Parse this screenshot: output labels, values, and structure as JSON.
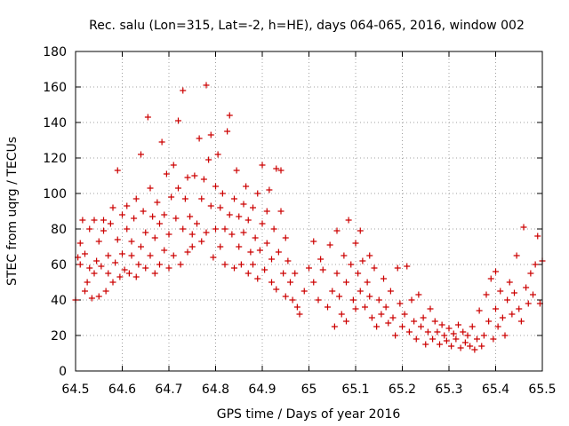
{
  "chart_data": {
    "type": "scatter",
    "title": "Rec. salu (Lon=315, Lat=-2, h=HE), days 064-065, 2016, window 002",
    "xlabel": "GPS time / Days of year 2016",
    "ylabel": "STEC from uqrg / TECUs",
    "xlim": [
      64.5,
      65.5
    ],
    "ylim": [
      0,
      180
    ],
    "xticks": [
      64.5,
      64.6,
      64.7,
      64.8,
      64.9,
      65,
      65.1,
      65.2,
      65.3,
      65.4,
      65.5
    ],
    "xtick_labels": [
      "64.5",
      "64.6",
      "64.7",
      "64.8",
      "64.9",
      "65",
      "65.1",
      "65.2",
      "65.3",
      "65.4",
      "65.5"
    ],
    "yticks": [
      0,
      20,
      40,
      60,
      80,
      100,
      120,
      140,
      160,
      180
    ],
    "ytick_labels": [
      "0",
      "20",
      "40",
      "60",
      "80",
      "100",
      "120",
      "140",
      "160",
      "180"
    ],
    "grid": true,
    "marker": "plus",
    "color": "#cc0000",
    "series": [
      {
        "points": [
          [
            64.5,
            40
          ],
          [
            64.505,
            64
          ],
          [
            64.51,
            60
          ],
          [
            64.51,
            72
          ],
          [
            64.515,
            85
          ],
          [
            64.52,
            45
          ],
          [
            64.52,
            66
          ],
          [
            64.525,
            50
          ],
          [
            64.53,
            58
          ],
          [
            64.53,
            80
          ],
          [
            64.535,
            41
          ],
          [
            64.54,
            55
          ],
          [
            64.54,
            85
          ],
          [
            64.545,
            62
          ],
          [
            64.55,
            42
          ],
          [
            64.55,
            73
          ],
          [
            64.555,
            59
          ],
          [
            64.56,
            79
          ],
          [
            64.56,
            85
          ],
          [
            64.565,
            45
          ],
          [
            64.57,
            55
          ],
          [
            64.57,
            65
          ],
          [
            64.575,
            83
          ],
          [
            64.58,
            92
          ],
          [
            64.58,
            50
          ],
          [
            64.585,
            61
          ],
          [
            64.59,
            113
          ],
          [
            64.59,
            74
          ],
          [
            64.595,
            53
          ],
          [
            64.6,
            66
          ],
          [
            64.6,
            88
          ],
          [
            64.605,
            57
          ],
          [
            64.61,
            80
          ],
          [
            64.61,
            93
          ],
          [
            64.615,
            55
          ],
          [
            64.62,
            65
          ],
          [
            64.62,
            73
          ],
          [
            64.625,
            86
          ],
          [
            64.63,
            97
          ],
          [
            64.63,
            53
          ],
          [
            64.635,
            60
          ],
          [
            64.64,
            122
          ],
          [
            64.64,
            70
          ],
          [
            64.645,
            90
          ],
          [
            64.65,
            58
          ],
          [
            64.65,
            78
          ],
          [
            64.655,
            143
          ],
          [
            64.66,
            103
          ],
          [
            64.66,
            65
          ],
          [
            64.665,
            87
          ],
          [
            64.67,
            55
          ],
          [
            64.67,
            75
          ],
          [
            64.675,
            95
          ],
          [
            64.68,
            60
          ],
          [
            64.68,
            83
          ],
          [
            64.685,
            129
          ],
          [
            64.69,
            68
          ],
          [
            64.69,
            88
          ],
          [
            64.695,
            111
          ],
          [
            64.7,
            58
          ],
          [
            64.7,
            77
          ],
          [
            64.705,
            98
          ],
          [
            64.71,
            116
          ],
          [
            64.71,
            65
          ],
          [
            64.715,
            86
          ],
          [
            64.72,
            103
          ],
          [
            64.72,
            141
          ],
          [
            64.725,
            60
          ],
          [
            64.73,
            80
          ],
          [
            64.73,
            158
          ],
          [
            64.735,
            97
          ],
          [
            64.74,
            67
          ],
          [
            64.74,
            109
          ],
          [
            64.745,
            87
          ],
          [
            64.75,
            70
          ],
          [
            64.75,
            77
          ],
          [
            64.755,
            110
          ],
          [
            64.76,
            83
          ],
          [
            64.765,
            131
          ],
          [
            64.77,
            73
          ],
          [
            64.77,
            97
          ],
          [
            64.775,
            108
          ],
          [
            64.78,
            161
          ],
          [
            64.78,
            78
          ],
          [
            64.785,
            119
          ],
          [
            64.79,
            93
          ],
          [
            64.79,
            133
          ],
          [
            64.795,
            64
          ],
          [
            64.8,
            80
          ],
          [
            64.8,
            104
          ],
          [
            64.805,
            122
          ],
          [
            64.81,
            70
          ],
          [
            64.81,
            92
          ],
          [
            64.815,
            100
          ],
          [
            64.82,
            60
          ],
          [
            64.82,
            80
          ],
          [
            64.825,
            135
          ],
          [
            64.83,
            88
          ],
          [
            64.83,
            144
          ],
          [
            64.835,
            77
          ],
          [
            64.84,
            58
          ],
          [
            64.84,
            97
          ],
          [
            64.845,
            113
          ],
          [
            64.85,
            70
          ],
          [
            64.85,
            87
          ],
          [
            64.855,
            60
          ],
          [
            64.86,
            94
          ],
          [
            64.86,
            78
          ],
          [
            64.865,
            104
          ],
          [
            64.87,
            55
          ],
          [
            64.87,
            85
          ],
          [
            64.875,
            67
          ],
          [
            64.88,
            92
          ],
          [
            64.88,
            60
          ],
          [
            64.885,
            75
          ],
          [
            64.89,
            100
          ],
          [
            64.89,
            52
          ],
          [
            64.895,
            68
          ],
          [
            64.9,
            116
          ],
          [
            64.9,
            83
          ],
          [
            64.905,
            57
          ],
          [
            64.91,
            90
          ],
          [
            64.91,
            72
          ],
          [
            64.915,
            102
          ],
          [
            64.92,
            50
          ],
          [
            64.92,
            63
          ],
          [
            64.925,
            80
          ],
          [
            64.93,
            114
          ],
          [
            64.93,
            46
          ],
          [
            64.935,
            67
          ],
          [
            64.94,
            113
          ],
          [
            64.94,
            90
          ],
          [
            64.945,
            55
          ],
          [
            64.95,
            75
          ],
          [
            64.95,
            42
          ],
          [
            64.955,
            62
          ],
          [
            64.96,
            50
          ],
          [
            64.965,
            40
          ],
          [
            64.97,
            55
          ],
          [
            64.975,
            36
          ],
          [
            64.98,
            32
          ],
          [
            64.99,
            45
          ],
          [
            65.0,
            58
          ],
          [
            65.01,
            73
          ],
          [
            65.01,
            50
          ],
          [
            65.02,
            40
          ],
          [
            65.025,
            63
          ],
          [
            65.03,
            57
          ],
          [
            65.04,
            36
          ],
          [
            65.045,
            71
          ],
          [
            65.05,
            45
          ],
          [
            65.055,
            25
          ],
          [
            65.06,
            79
          ],
          [
            65.06,
            55
          ],
          [
            65.065,
            42
          ],
          [
            65.07,
            32
          ],
          [
            65.075,
            65
          ],
          [
            65.08,
            50
          ],
          [
            65.08,
            28
          ],
          [
            65.085,
            85
          ],
          [
            65.09,
            60
          ],
          [
            65.095,
            40
          ],
          [
            65.1,
            72
          ],
          [
            65.1,
            35
          ],
          [
            65.105,
            55
          ],
          [
            65.11,
            79
          ],
          [
            65.11,
            45
          ],
          [
            65.115,
            62
          ],
          [
            65.12,
            36
          ],
          [
            65.125,
            50
          ],
          [
            65.13,
            42
          ],
          [
            65.13,
            65
          ],
          [
            65.135,
            30
          ],
          [
            65.14,
            58
          ],
          [
            65.145,
            25
          ],
          [
            65.15,
            40
          ],
          [
            65.155,
            32
          ],
          [
            65.16,
            52
          ],
          [
            65.165,
            36
          ],
          [
            65.17,
            27
          ],
          [
            65.175,
            45
          ],
          [
            65.18,
            30
          ],
          [
            65.185,
            20
          ],
          [
            65.19,
            58
          ],
          [
            65.195,
            38
          ],
          [
            65.2,
            25
          ],
          [
            65.205,
            32
          ],
          [
            65.21,
            59
          ],
          [
            65.215,
            22
          ],
          [
            65.22,
            40
          ],
          [
            65.225,
            28
          ],
          [
            65.23,
            18
          ],
          [
            65.235,
            43
          ],
          [
            65.24,
            25
          ],
          [
            65.245,
            30
          ],
          [
            65.25,
            15
          ],
          [
            65.255,
            22
          ],
          [
            65.26,
            35
          ],
          [
            65.265,
            18
          ],
          [
            65.27,
            28
          ],
          [
            65.275,
            22
          ],
          [
            65.28,
            15
          ],
          [
            65.285,
            26
          ],
          [
            65.29,
            20
          ],
          [
            65.295,
            17
          ],
          [
            65.3,
            24
          ],
          [
            65.305,
            14
          ],
          [
            65.31,
            21
          ],
          [
            65.315,
            18
          ],
          [
            65.32,
            26
          ],
          [
            65.325,
            13
          ],
          [
            65.33,
            22
          ],
          [
            65.335,
            16
          ],
          [
            65.34,
            20
          ],
          [
            65.345,
            14
          ],
          [
            65.35,
            25
          ],
          [
            65.355,
            12
          ],
          [
            65.36,
            18
          ],
          [
            65.365,
            34
          ],
          [
            65.37,
            14
          ],
          [
            65.375,
            20
          ],
          [
            65.38,
            43
          ],
          [
            65.385,
            28
          ],
          [
            65.39,
            52
          ],
          [
            65.395,
            18
          ],
          [
            65.4,
            35
          ],
          [
            65.4,
            56
          ],
          [
            65.405,
            25
          ],
          [
            65.41,
            45
          ],
          [
            65.415,
            30
          ],
          [
            65.42,
            20
          ],
          [
            65.425,
            40
          ],
          [
            65.43,
            50
          ],
          [
            65.435,
            32
          ],
          [
            65.44,
            44
          ],
          [
            65.445,
            65
          ],
          [
            65.45,
            35
          ],
          [
            65.455,
            28
          ],
          [
            65.46,
            81
          ],
          [
            65.465,
            47
          ],
          [
            65.47,
            38
          ],
          [
            65.475,
            55
          ],
          [
            65.48,
            43
          ],
          [
            65.485,
            60
          ],
          [
            65.49,
            76
          ],
          [
            65.495,
            38
          ],
          [
            65.5,
            62
          ]
        ]
      }
    ]
  }
}
